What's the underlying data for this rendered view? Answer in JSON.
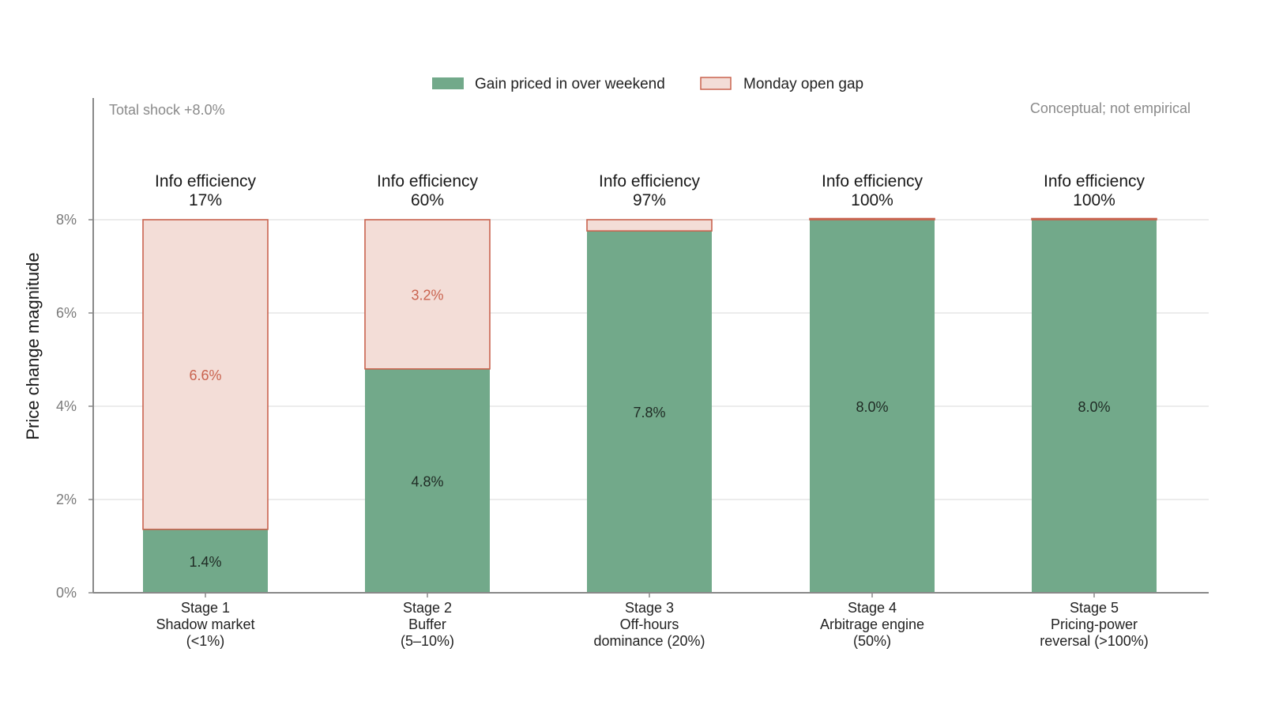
{
  "chart_data": {
    "type": "bar",
    "stacked": true,
    "ylabel": "Price change magnitude",
    "ylim": [
      0,
      8
    ],
    "yticks": [
      "0%",
      "2%",
      "4%",
      "6%",
      "8%"
    ],
    "grid": true,
    "legend_position": "top-center",
    "categories": [
      [
        "Stage 1",
        "Shadow market",
        "(<1%)"
      ],
      [
        "Stage 2",
        "Buffer",
        "(5–10%)"
      ],
      [
        "Stage 3",
        "Off-hours",
        "dominance (20%)"
      ],
      [
        "Stage 4",
        "Arbitrage engine",
        "(50%)"
      ],
      [
        "Stage 5",
        "Pricing-power",
        "reversal (>100%)"
      ]
    ],
    "series": [
      {
        "name": "Gain priced in over weekend",
        "color": "#72a98a",
        "values": [
          1.36,
          4.8,
          7.76,
          8.0,
          8.0
        ],
        "labels": [
          "1.4%",
          "4.8%",
          "7.8%",
          "8.0%",
          "8.0%"
        ]
      },
      {
        "name": "Monday open gap",
        "color": "#f3ddd7",
        "edge_color": "#c9634f",
        "values": [
          6.64,
          3.2,
          0.24,
          0.0,
          0.0
        ],
        "labels": [
          "6.6%",
          "3.2%",
          "",
          "",
          ""
        ]
      }
    ],
    "efficiency": [
      [
        "Info efficiency",
        "17%"
      ],
      [
        "Info efficiency",
        "60%"
      ],
      [
        "Info efficiency",
        "97%"
      ],
      [
        "Info efficiency",
        "100%"
      ],
      [
        "Info efficiency",
        "100%"
      ]
    ],
    "annotations": {
      "top_left": "Total shock +8.0%",
      "top_right": "Conceptual; not empirical"
    }
  }
}
